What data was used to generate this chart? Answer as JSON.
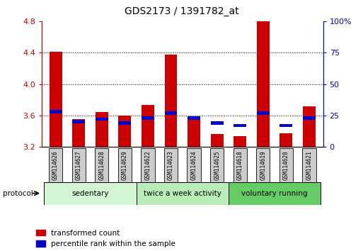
{
  "title": "GDS2173 / 1391782_at",
  "samples": [
    "GSM114626",
    "GSM114627",
    "GSM114628",
    "GSM114629",
    "GSM114622",
    "GSM114623",
    "GSM114624",
    "GSM114625",
    "GSM114618",
    "GSM114619",
    "GSM114620",
    "GSM114621"
  ],
  "red_values": [
    4.41,
    3.55,
    3.64,
    3.6,
    3.73,
    4.38,
    3.58,
    3.36,
    3.34,
    4.8,
    3.37,
    3.72
  ],
  "blue_values_pct": [
    28,
    20,
    22,
    19,
    23,
    27,
    23,
    19,
    17,
    27,
    17,
    23
  ],
  "y_min": 3.2,
  "y_max": 4.8,
  "y_ticks": [
    3.2,
    3.6,
    4.0,
    4.4,
    4.8
  ],
  "y2_ticks": [
    0,
    25,
    50,
    75,
    100
  ],
  "y2_labels": [
    "0",
    "25",
    "50",
    "75",
    "100%"
  ],
  "groups": [
    {
      "label": "sedentary",
      "start": 0,
      "end": 4,
      "color": "#d4f5d4"
    },
    {
      "label": "twice a week activity",
      "start": 4,
      "end": 8,
      "color": "#b8edb8"
    },
    {
      "label": "voluntary running",
      "start": 8,
      "end": 12,
      "color": "#66cc66"
    }
  ],
  "protocol_label": "protocol",
  "legend_red": "transformed count",
  "legend_blue": "percentile rank within the sample",
  "bar_width": 0.55,
  "red_color": "#cc0000",
  "blue_color": "#0000cc",
  "sample_bg_color": "#cccccc",
  "bar_bottom": 3.2
}
